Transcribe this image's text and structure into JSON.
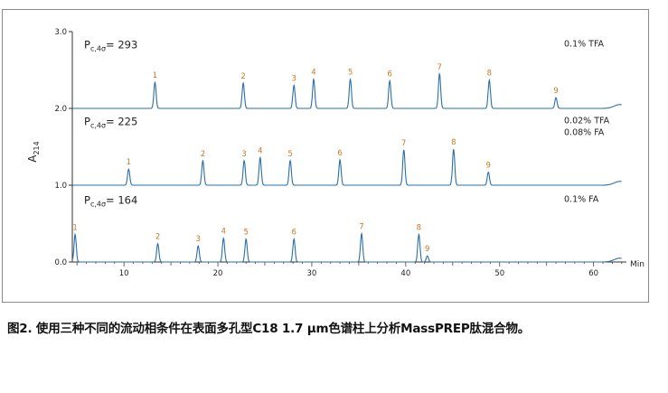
{
  "chart_data": {
    "type": "line",
    "xlabel": "Min",
    "ylabel": "A",
    "ylabel_sub": "214",
    "xlim": [
      4.5,
      63.5
    ],
    "ylim": [
      0.0,
      3.0
    ],
    "x_ticks": [
      10,
      20,
      30,
      40,
      50,
      60
    ],
    "y_ticks": [
      0.0,
      1.0,
      2.0,
      3.0
    ],
    "x_tick_labels": [
      "10",
      "20",
      "30",
      "40",
      "50",
      "60"
    ],
    "y_tick_labels": [
      "0.0",
      "1.0",
      "2.0",
      "3.0"
    ],
    "grid": false,
    "line_color": "#2a6fa8",
    "label_color": "#c87a1e",
    "series": [
      {
        "name": "0.1% TFA",
        "name_lines": [
          "0.1% TFA"
        ],
        "pc_main": "P",
        "pc_sub": "c,4σ",
        "pc_value": "= 293",
        "baseline": 2.0,
        "peaks": [
          {
            "label": "1",
            "x": 13.3,
            "y": 2.34
          },
          {
            "label": "2",
            "x": 22.7,
            "y": 2.33
          },
          {
            "label": "3",
            "x": 28.1,
            "y": 2.3
          },
          {
            "label": "4",
            "x": 30.2,
            "y": 2.38
          },
          {
            "label": "5",
            "x": 34.1,
            "y": 2.38
          },
          {
            "label": "6",
            "x": 38.3,
            "y": 2.36
          },
          {
            "label": "7",
            "x": 43.6,
            "y": 2.45
          },
          {
            "label": "8",
            "x": 48.9,
            "y": 2.37
          },
          {
            "label": "9",
            "x": 56.0,
            "y": 2.14
          }
        ]
      },
      {
        "name": "0.02% TFA / 0.08% FA",
        "name_lines": [
          "0.02% TFA",
          "0.08% FA"
        ],
        "pc_main": "P",
        "pc_sub": "c,4σ",
        "pc_value": "= 225",
        "baseline": 1.0,
        "peaks": [
          {
            "label": "1",
            "x": 10.5,
            "y": 1.21
          },
          {
            "label": "2",
            "x": 18.4,
            "y": 1.32
          },
          {
            "label": "3",
            "x": 22.8,
            "y": 1.32
          },
          {
            "label": "4",
            "x": 24.5,
            "y": 1.36
          },
          {
            "label": "5",
            "x": 27.7,
            "y": 1.32
          },
          {
            "label": "6",
            "x": 33.0,
            "y": 1.33
          },
          {
            "label": "7",
            "x": 39.8,
            "y": 1.46
          },
          {
            "label": "8",
            "x": 45.1,
            "y": 1.47
          },
          {
            "label": "9",
            "x": 48.8,
            "y": 1.17
          }
        ]
      },
      {
        "name": "0.1% FA",
        "name_lines": [
          "0.1% FA"
        ],
        "pc_main": "P",
        "pc_sub": "c,4σ",
        "pc_value": "= 164",
        "baseline": 0.0,
        "peaks": [
          {
            "label": "1",
            "x": 4.8,
            "y": 0.36
          },
          {
            "label": "2",
            "x": 13.6,
            "y": 0.24
          },
          {
            "label": "3",
            "x": 17.9,
            "y": 0.21
          },
          {
            "label": "4",
            "x": 20.6,
            "y": 0.31
          },
          {
            "label": "5",
            "x": 23.0,
            "y": 0.3
          },
          {
            "label": "6",
            "x": 28.1,
            "y": 0.3
          },
          {
            "label": "7",
            "x": 35.3,
            "y": 0.37
          },
          {
            "label": "8",
            "x": 41.4,
            "y": 0.36
          },
          {
            "label": "9",
            "x": 42.3,
            "y": 0.08
          }
        ]
      }
    ]
  },
  "caption": "图2. 使用三种不同的流动相条件在表面多孔型C18 1.7 μm色谱柱上分析MassPREP肽混合物。"
}
